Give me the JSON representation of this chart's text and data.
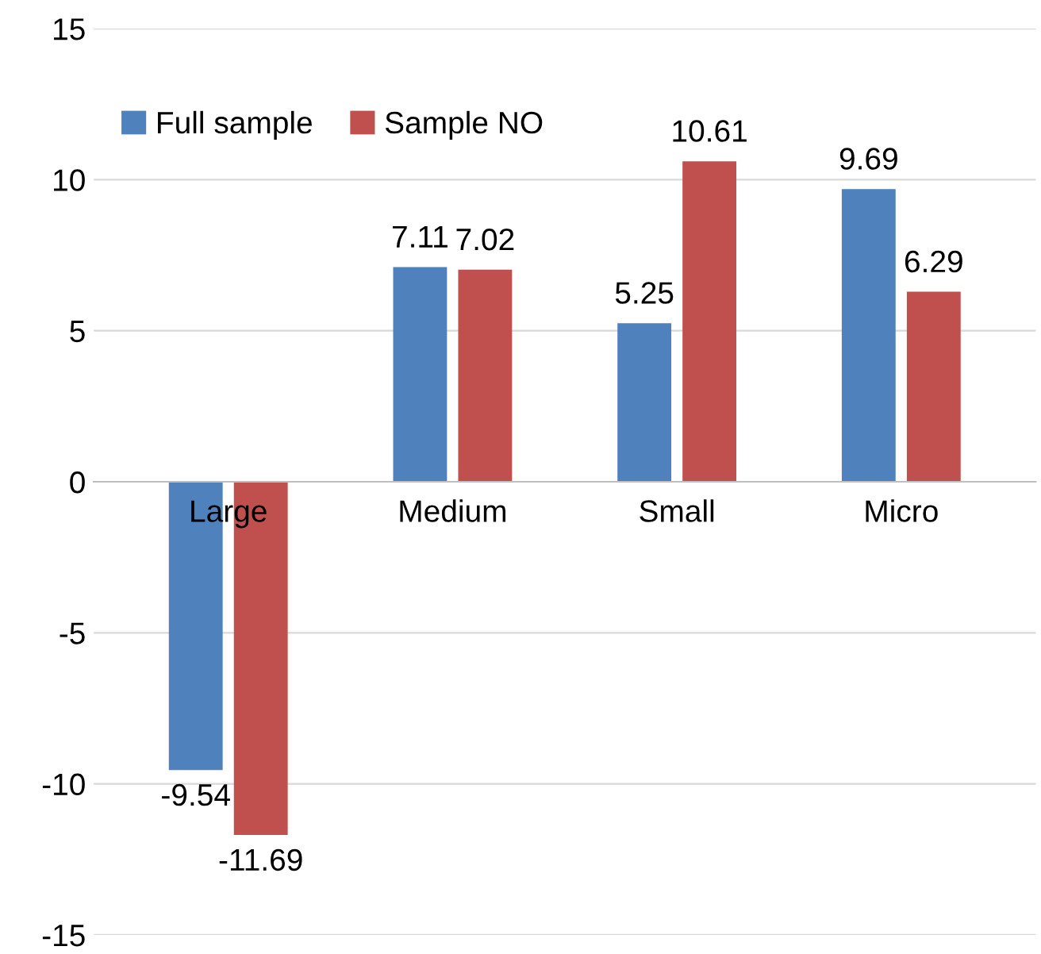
{
  "chart_data": {
    "type": "bar",
    "categories": [
      "Large",
      "Medium",
      "Small",
      "Micro"
    ],
    "series": [
      {
        "name": "Full sample",
        "color": "#4f81bd",
        "values": [
          -9.54,
          7.11,
          5.25,
          9.69
        ]
      },
      {
        "name": "Sample NO",
        "color": "#c0504d",
        "values": [
          -11.69,
          7.02,
          10.61,
          6.29
        ]
      }
    ],
    "ylim": [
      -15,
      15
    ],
    "yticks": [
      -15,
      -10,
      -5,
      0,
      5,
      10,
      15
    ],
    "grid": "y",
    "legend": "top left",
    "data_labels": true
  }
}
